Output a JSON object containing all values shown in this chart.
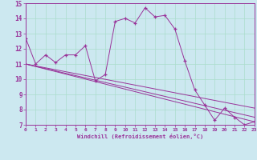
{
  "xlabel": "Windchill (Refroidissement éolien,°C)",
  "ylabel": "",
  "bg_color": "#cce8f0",
  "line_color": "#993399",
  "grid_color": "#aaddee",
  "xmin": 0,
  "xmax": 23,
  "ymin": 7,
  "ymax": 15,
  "series": [
    [
      0,
      12.7
    ],
    [
      1,
      11.0
    ],
    [
      2,
      11.6
    ],
    [
      3,
      11.1
    ],
    [
      4,
      11.6
    ],
    [
      5,
      11.6
    ],
    [
      6,
      12.2
    ],
    [
      7,
      9.9
    ],
    [
      8,
      10.3
    ],
    [
      9,
      13.8
    ],
    [
      10,
      14.0
    ],
    [
      11,
      13.7
    ],
    [
      12,
      14.7
    ],
    [
      13,
      14.1
    ],
    [
      14,
      14.2
    ],
    [
      15,
      13.3
    ],
    [
      16,
      11.2
    ],
    [
      17,
      9.3
    ],
    [
      18,
      8.3
    ],
    [
      19,
      7.3
    ],
    [
      20,
      8.1
    ],
    [
      21,
      7.5
    ],
    [
      22,
      7.0
    ],
    [
      23,
      7.2
    ]
  ],
  "trend_lines": [
    [
      [
        0,
        11.0
      ],
      [
        23,
        7.2
      ]
    ],
    [
      [
        0,
        11.0
      ],
      [
        23,
        7.5
      ]
    ],
    [
      [
        0,
        11.0
      ],
      [
        23,
        8.1
      ]
    ]
  ]
}
